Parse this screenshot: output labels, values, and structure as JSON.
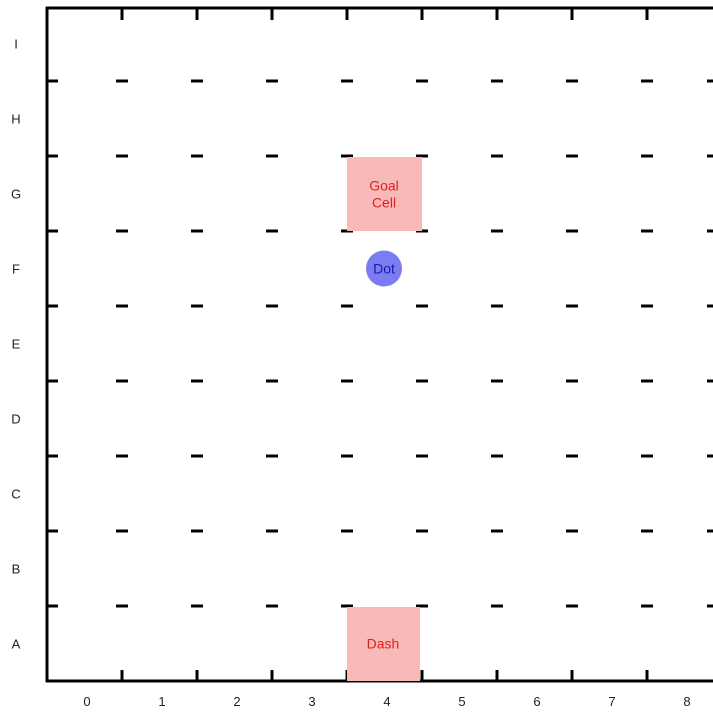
{
  "board": {
    "columns": [
      "0",
      "1",
      "2",
      "3",
      "4",
      "5",
      "6",
      "7",
      "8"
    ],
    "rows": [
      "A",
      "B",
      "C",
      "D",
      "E",
      "F",
      "G",
      "H",
      "I"
    ]
  },
  "goal_cell": {
    "label_line1": "Goal",
    "label_line2": "Cell",
    "col": 4,
    "row": "G",
    "fill": "#f9b9b9",
    "text_color": "#e0201a"
  },
  "dash": {
    "label": "Dash",
    "col": 4,
    "row": "A",
    "fill": "#f9b9b9",
    "text_color": "#e0201a"
  },
  "dot": {
    "label": "Dot",
    "col": 4,
    "row": "F",
    "fill": "#7b7bf2",
    "text_color": "#1a1aa8"
  },
  "colors": {
    "grid": "#000000",
    "background": "#ffffff"
  }
}
